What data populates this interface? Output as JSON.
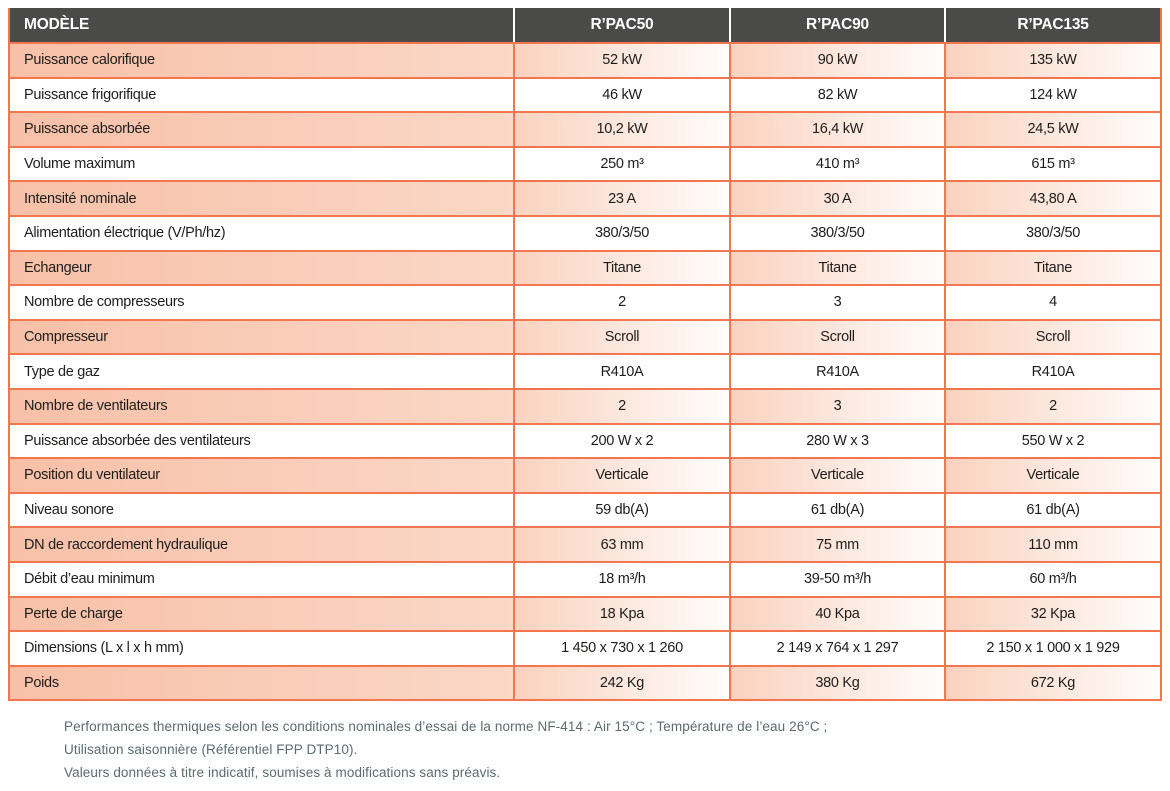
{
  "table": {
    "header": {
      "model_label": "MODÈLE",
      "columns": [
        "R’PAC50",
        "R’PAC90",
        "R’PAC135"
      ]
    },
    "rows": [
      {
        "label": "Puissance calorifique",
        "values": [
          "52 kW",
          "90 kW",
          "135 kW"
        ]
      },
      {
        "label": "Puissance frigorifique",
        "values": [
          "46 kW",
          "82 kW",
          "124 kW"
        ]
      },
      {
        "label": "Puissance absorbée",
        "values": [
          "10,2 kW",
          "16,4 kW",
          "24,5 kW"
        ]
      },
      {
        "label": "Volume maximum",
        "values": [
          "250 m³",
          "410 m³",
          "615 m³"
        ]
      },
      {
        "label": "Intensité nominale",
        "values": [
          "23 A",
          "30 A",
          "43,80 A"
        ]
      },
      {
        "label": "Alimentation électrique (V/Ph/hz)",
        "values": [
          "380/3/50",
          "380/3/50",
          "380/3/50"
        ]
      },
      {
        "label": "Echangeur",
        "values": [
          "Titane",
          "Titane",
          "Titane"
        ]
      },
      {
        "label": "Nombre de compresseurs",
        "values": [
          "2",
          "3",
          "4"
        ]
      },
      {
        "label": "Compresseur",
        "values": [
          "Scroll",
          "Scroll",
          "Scroll"
        ]
      },
      {
        "label": "Type de gaz",
        "values": [
          "R410A",
          "R410A",
          "R410A"
        ]
      },
      {
        "label": "Nombre de ventilateurs",
        "values": [
          "2",
          "3",
          "2"
        ]
      },
      {
        "label": "Puissance absorbée des ventilateurs",
        "values": [
          "200 W x 2",
          "280 W x 3",
          "550 W x 2"
        ]
      },
      {
        "label": "Position du ventilateur",
        "values": [
          "Verticale",
          "Verticale",
          "Verticale"
        ]
      },
      {
        "label": "Niveau sonore",
        "values": [
          "59 db(A)",
          "61 db(A)",
          "61 db(A)"
        ]
      },
      {
        "label": "DN de raccordement hydraulique",
        "values": [
          "63 mm",
          "75 mm",
          "110 mm"
        ]
      },
      {
        "label": "Débit d’eau minimum",
        "values": [
          "18 m³/h",
          "39-50 m³/h",
          "60 m³/h"
        ]
      },
      {
        "label": "Perte de charge",
        "values": [
          "18 Kpa",
          "40 Kpa",
          "32 Kpa"
        ]
      },
      {
        "label": "Dimensions (L x l x h mm)",
        "values": [
          "1 450 x 730 x 1 260",
          "2 149 x 764 x 1 297",
          "2 150 x 1 000 x 1 929"
        ]
      },
      {
        "label": "Poids",
        "values": [
          "242 Kg",
          "380 Kg",
          "672 Kg"
        ]
      }
    ]
  },
  "footnotes": {
    "lines": [
      "Performances thermiques selon les conditions nominales d’essai de la norme NF-414 : Air 15°C ; Température de l’eau 26°C ;",
      "Utilisation saisonnière (Référentiel FPP DTP10).",
      "Valeurs données à titre indicatif, soumises à modifications sans préavis."
    ]
  },
  "colors": {
    "header_bg": "#4a4a49",
    "border_orange": "#f4764f",
    "row_salmon": "#f8c0a7",
    "footnote_text": "#5b6b6e",
    "bottom_rule": "#4e5d63"
  }
}
